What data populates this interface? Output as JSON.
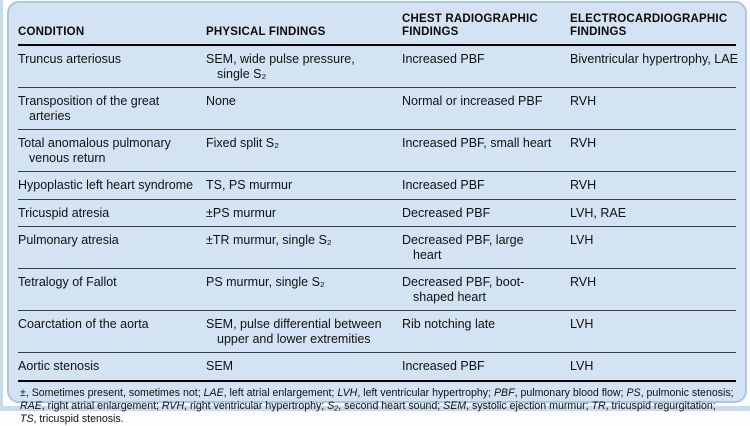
{
  "colors": {
    "panel_fill": "#d4e3f3",
    "panel_border": "#a9c6e2",
    "rule_heavy": "#000000",
    "rule_light": "#3d3d3d",
    "text": "#101010"
  },
  "table": {
    "columns": [
      [
        "CONDITION"
      ],
      [
        "PHYSICAL FINDINGS"
      ],
      [
        "CHEST RADIOGRAPHIC",
        "FINDINGS"
      ],
      [
        "ELECTROCARDIOGRAPHIC",
        "FINDINGS"
      ]
    ],
    "rows": [
      [
        [
          "Truncus arteriosus"
        ],
        [
          "SEM, wide pulse pressure,",
          "single S₂"
        ],
        [
          "Increased PBF"
        ],
        [
          "Biventricular hypertrophy, LAE"
        ]
      ],
      [
        [
          "Transposition of the great",
          "arteries"
        ],
        [
          "None"
        ],
        [
          "Normal or increased PBF"
        ],
        [
          "RVH"
        ]
      ],
      [
        [
          "Total anomalous pulmonary",
          "venous return"
        ],
        [
          "Fixed split S₂"
        ],
        [
          "Increased PBF, small heart"
        ],
        [
          "RVH"
        ]
      ],
      [
        [
          "Hypoplastic left heart syndrome"
        ],
        [
          "TS, PS murmur"
        ],
        [
          "Increased PBF"
        ],
        [
          "RVH"
        ]
      ],
      [
        [
          "Tricuspid atresia"
        ],
        [
          "±PS murmur"
        ],
        [
          "Decreased PBF"
        ],
        [
          "LVH, RAE"
        ]
      ],
      [
        [
          "Pulmonary atresia"
        ],
        [
          "±TR murmur, single S₂"
        ],
        [
          "Decreased PBF, large",
          "heart"
        ],
        [
          "LVH"
        ]
      ],
      [
        [
          "Tetralogy of Fallot"
        ],
        [
          "PS murmur, single S₂"
        ],
        [
          "Decreased PBF, boot-",
          "shaped heart"
        ],
        [
          "RVH"
        ]
      ],
      [
        [
          "Coarctation of the aorta"
        ],
        [
          "SEM, pulse differential between",
          "upper and lower extremities"
        ],
        [
          "Rib notching late"
        ],
        [
          "LVH"
        ]
      ],
      [
        [
          "Aortic stenosis"
        ],
        [
          "SEM"
        ],
        [
          "Increased PBF"
        ],
        [
          "LVH"
        ]
      ]
    ]
  },
  "footnote": {
    "segments": [
      {
        "text": "±, Sometimes present, sometimes not; ",
        "italic": false
      },
      {
        "text": "LAE",
        "italic": true
      },
      {
        "text": ", left atrial enlargement; ",
        "italic": false
      },
      {
        "text": "LVH",
        "italic": true
      },
      {
        "text": ", left ventricular hypertrophy; ",
        "italic": false
      },
      {
        "text": "PBF",
        "italic": true
      },
      {
        "text": ", pulmonary blood flow; ",
        "italic": false
      },
      {
        "text": "PS",
        "italic": true
      },
      {
        "text": ", pulmonic stenosis; ",
        "italic": false
      },
      {
        "text": "RAE",
        "italic": true
      },
      {
        "text": ", right atrial enlargement; ",
        "italic": false
      },
      {
        "text": "RVH",
        "italic": true
      },
      {
        "text": ", right ventricular hypertrophy; ",
        "italic": false
      },
      {
        "text": "S₂",
        "italic": true
      },
      {
        "text": ", second heart sound; ",
        "italic": false
      },
      {
        "text": "SEM",
        "italic": true
      },
      {
        "text": ", systolic ejection murmur; ",
        "italic": false
      },
      {
        "text": "TR",
        "italic": true
      },
      {
        "text": ", tricuspid regurgitation; ",
        "italic": false
      },
      {
        "text": "TS",
        "italic": true
      },
      {
        "text": ", tricuspid stenosis.",
        "italic": false
      }
    ]
  }
}
